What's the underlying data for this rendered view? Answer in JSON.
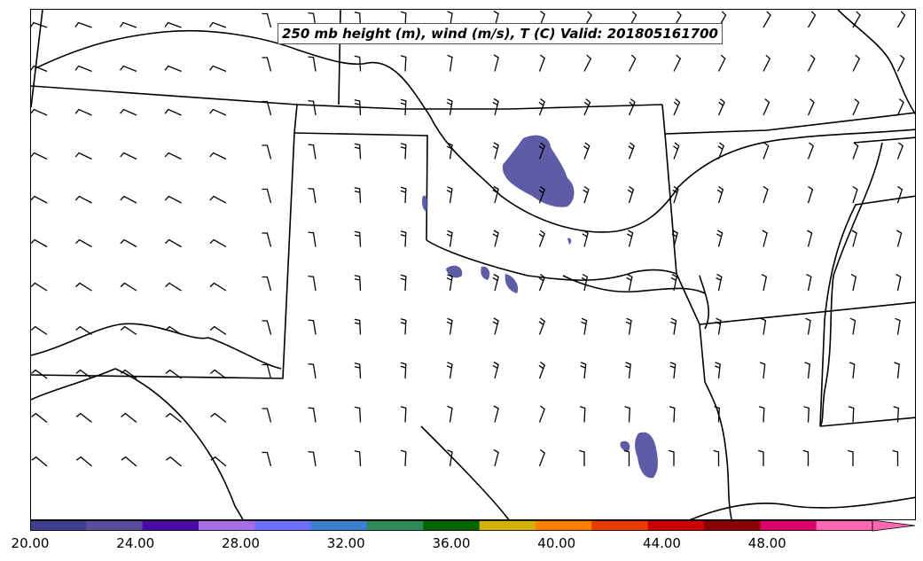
{
  "map": {
    "title": "250 mb height (m), wind (m/s), T (C) Valid: 201805161700",
    "wind_barb_color": "#000000",
    "boundary_color": "#000000"
  },
  "colorbar": {
    "min": 20,
    "max": 52,
    "colors": [
      "#3f3f8f",
      "#5a4d9e",
      "#4b0aa6",
      "#a66ee6",
      "#6e6eff",
      "#3a7fd0",
      "#2e8b57",
      "#006400",
      "#d4b106",
      "#ff8000",
      "#e63c00",
      "#c80000",
      "#8b0000",
      "#d9006c",
      "#ff69b4"
    ],
    "tick_labels": [
      "20.00",
      "24.00",
      "28.00",
      "32.00",
      "36.00",
      "40.00",
      "44.00",
      "48.00"
    ]
  }
}
